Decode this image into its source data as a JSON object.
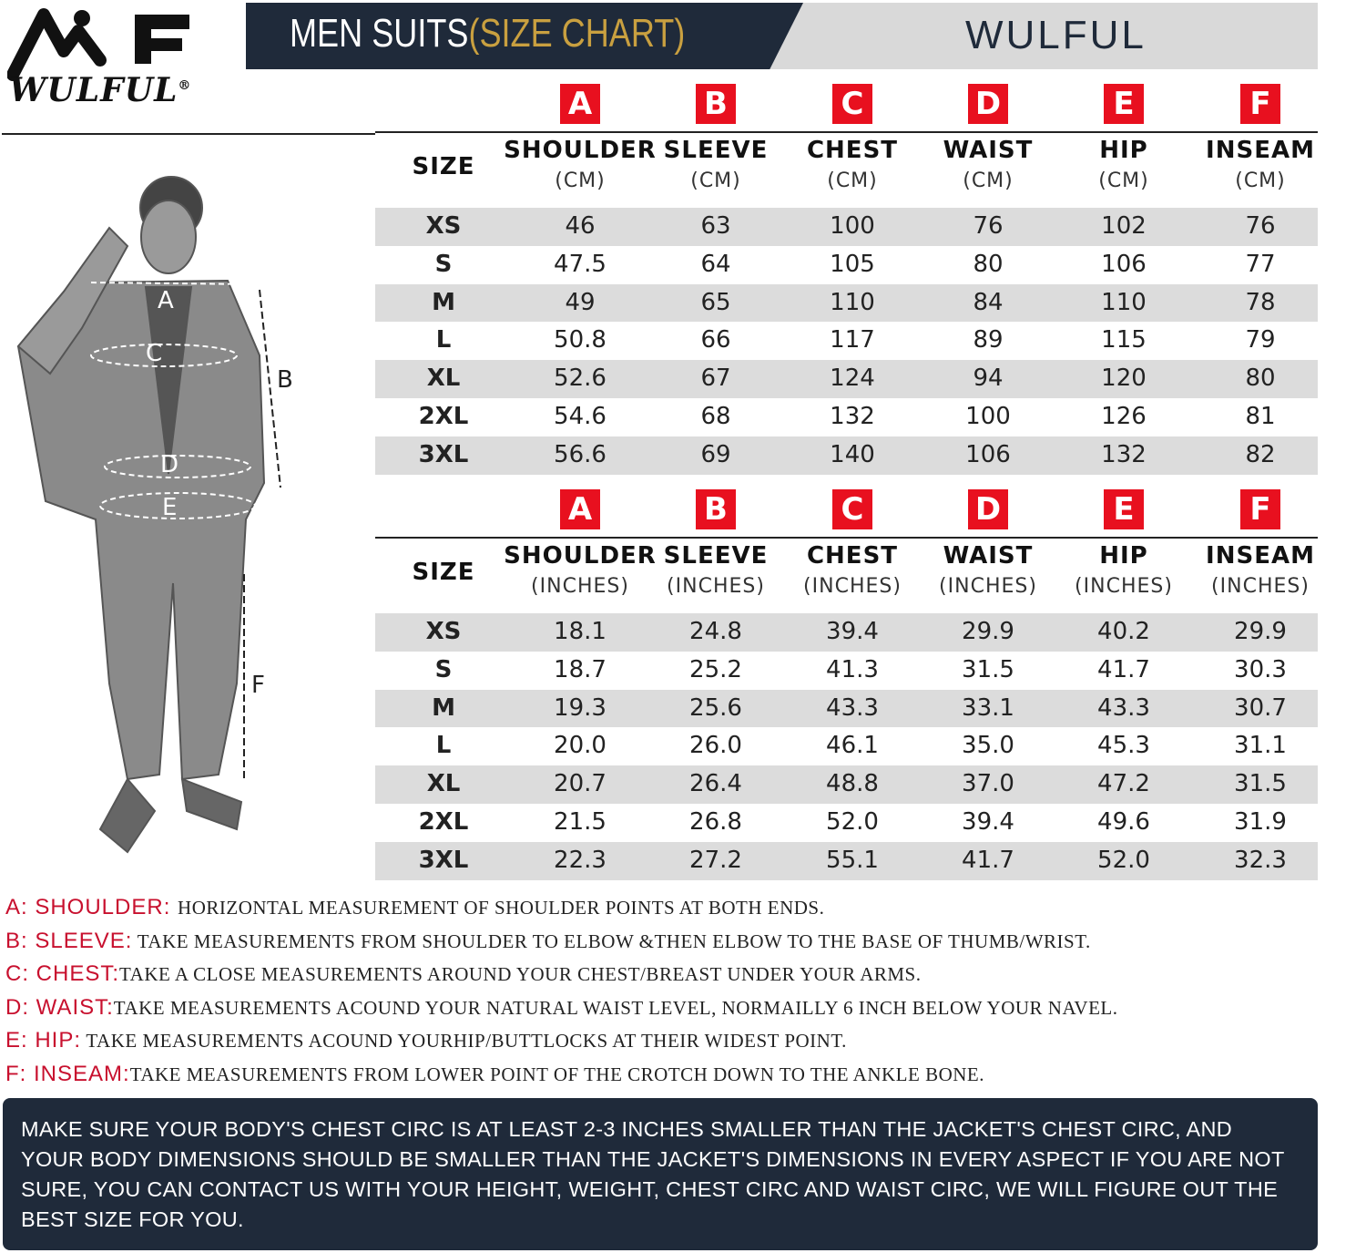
{
  "logo": {
    "mark": "MF",
    "text": "WULFUL",
    "registered": "®"
  },
  "banner": {
    "title_main": "MEN SUITS",
    "title_accent": "(SIZE CHART)",
    "brand": "WULFUL"
  },
  "colors": {
    "navy": "#1f2a3a",
    "gold": "#c9a040",
    "red": "#e8101f",
    "row_shade": "#dcdcdc"
  },
  "figure": {
    "labels": [
      "A",
      "B",
      "C",
      "D",
      "E",
      "F"
    ]
  },
  "tables": [
    {
      "letters": [
        "A",
        "B",
        "C",
        "D",
        "E",
        "F"
      ],
      "size_header": "SIZE",
      "columns": [
        {
          "name": "SHOULDER",
          "unit": "(CM)"
        },
        {
          "name": "SLEEVE",
          "unit": "(CM)"
        },
        {
          "name": "CHEST",
          "unit": "(CM)"
        },
        {
          "name": "WAIST",
          "unit": "(CM)"
        },
        {
          "name": "HIP",
          "unit": "(CM)"
        },
        {
          "name": "INSEAM",
          "unit": "(CM)"
        }
      ],
      "rows": [
        [
          "XS",
          "46",
          "63",
          "100",
          "76",
          "102",
          "76"
        ],
        [
          "S",
          "47.5",
          "64",
          "105",
          "80",
          "106",
          "77"
        ],
        [
          "M",
          "49",
          "65",
          "110",
          "84",
          "110",
          "78"
        ],
        [
          "L",
          "50.8",
          "66",
          "117",
          "89",
          "115",
          "79"
        ],
        [
          "XL",
          "52.6",
          "67",
          "124",
          "94",
          "120",
          "80"
        ],
        [
          "2XL",
          "54.6",
          "68",
          "132",
          "100",
          "126",
          "81"
        ],
        [
          "3XL",
          "56.6",
          "69",
          "140",
          "106",
          "132",
          "82"
        ]
      ]
    },
    {
      "letters": [
        "A",
        "B",
        "C",
        "D",
        "E",
        "F"
      ],
      "size_header": "SIZE",
      "columns": [
        {
          "name": "SHOULDER",
          "unit": "(INCHES)"
        },
        {
          "name": "SLEEVE",
          "unit": "(INCHES)"
        },
        {
          "name": "CHEST",
          "unit": "(INCHES)"
        },
        {
          "name": "WAIST",
          "unit": "(INCHES)"
        },
        {
          "name": "HIP",
          "unit": "(INCHES)"
        },
        {
          "name": "INSEAM",
          "unit": "(INCHES)"
        }
      ],
      "rows": [
        [
          "XS",
          "18.1",
          "24.8",
          "39.4",
          "29.9",
          "40.2",
          "29.9"
        ],
        [
          "S",
          "18.7",
          "25.2",
          "41.3",
          "31.5",
          "41.7",
          "30.3"
        ],
        [
          "M",
          "19.3",
          "25.6",
          "43.3",
          "33.1",
          "43.3",
          "30.7"
        ],
        [
          "L",
          "20.0",
          "26.0",
          "46.1",
          "35.0",
          "45.3",
          "31.1"
        ],
        [
          "XL",
          "20.7",
          "26.4",
          "48.8",
          "37.0",
          "47.2",
          "31.5"
        ],
        [
          "2XL",
          "21.5",
          "26.8",
          "52.0",
          "39.4",
          "49.6",
          "31.9"
        ],
        [
          "3XL",
          "22.3",
          "27.2",
          "55.1",
          "41.7",
          "52.0",
          "32.3"
        ]
      ]
    }
  ],
  "descriptions": [
    {
      "label": "A: SHOULDER: ",
      "text": " HORIZONTAL MEASUREMENT OF SHOULDER POINTS AT BOTH ENDS."
    },
    {
      "label": "B: SLEEVE:",
      "text": " TAKE MEASUREMENTS FROM SHOULDER TO ELBOW &THEN ELBOW TO THE BASE OF THUMB/WRIST."
    },
    {
      "label": "C: CHEST:",
      "text": "TAKE A CLOSE MEASUREMENTS AROUND YOUR CHEST/BREAST UNDER YOUR ARMS."
    },
    {
      "label": "D: WAIST:",
      "text": "TAKE MEASUREMENTS ACOUND YOUR NATURAL WAIST LEVEL, NORMAILLY 6 INCH BELOW YOUR NAVEL."
    },
    {
      "label": "E: HIP:",
      "text": " TAKE MEASUREMENTS ACOUND YOURHIP/BUTTLOCKS AT THEIR WIDEST POINT."
    },
    {
      "label": "F: INSEAM:",
      "text": "TAKE MEASUREMENTS FROM LOWER POINT OF THE CROTCH DOWN TO THE ANKLE BONE."
    }
  ],
  "notice": "MAKE SURE YOUR BODY'S CHEST CIRC IS AT LEAST 2-3 INCHES SMALLER THAN THE JACKET'S CHEST CIRC, AND YOUR BODY DIMENSIONS SHOULD BE SMALLER THAN THE JACKET'S DIMENSIONS IN EVERY ASPECT IF YOU ARE NOT SURE, YOU CAN CONTACT US WITH YOUR HEIGHT, WEIGHT, CHEST CIRC AND WAIST CIRC, WE WILL FIGURE OUT THE BEST SIZE FOR YOU."
}
